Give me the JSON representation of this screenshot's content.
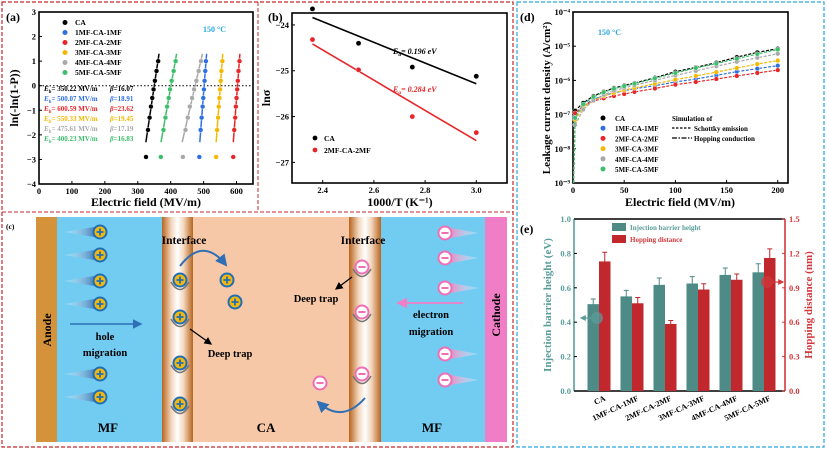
{
  "chart_data": [
    {
      "type": "scatter",
      "panel_label": "(a)",
      "xlabel": "Electric field (MV/m)",
      "ylabel": "ln(-ln(1-P))",
      "xlim": [
        0,
        650
      ],
      "ylim": [
        -4,
        3
      ],
      "xticks": [
        0,
        100,
        200,
        300,
        400,
        500,
        600
      ],
      "xtick_labels": [
        "0",
        "100",
        "200",
        "300",
        "400",
        "500",
        "600"
      ],
      "yticks": [
        -4,
        -3,
        -2,
        -1,
        0,
        1,
        2,
        3
      ],
      "ytick_labels": [
        "−4",
        "−3",
        "−2",
        "−1",
        "0",
        "1",
        "2",
        "3"
      ],
      "annotation": "150 °C",
      "annotation_color": "#2AA7E0",
      "reference_line_y": 0,
      "eb_symbol": "E",
      "eb_subscript": "b",
      "beta_symbol": "β",
      "y_values": [
        -2.9,
        -1.8,
        -1.3,
        -0.85,
        -0.5,
        -0.15,
        0.2,
        0.6,
        1.0
      ],
      "series": [
        {
          "name": "CA",
          "color": "#000000",
          "x": [
            325,
            331,
            336,
            340,
            344,
            348,
            352,
            357,
            362
          ],
          "eb_text": "= 350.22 MV/m",
          "beta_text": "=16.07"
        },
        {
          "name": "1MF-CA-1MF",
          "color": "#2F6FE0",
          "x": [
            487,
            491,
            494,
            497,
            499,
            501,
            503,
            505,
            507
          ],
          "eb_text": "= 500.07 MV/m",
          "beta_text": "=18.91"
        },
        {
          "name": "2MF-CA-2MF",
          "color": "#E8262A",
          "x": [
            590,
            593,
            596,
            598,
            600,
            602,
            604,
            606,
            609
          ],
          "eb_text": "= 600.59 MV/m",
          "beta_text": "=23.62"
        },
        {
          "name": "3MF-CA-3MF",
          "color": "#F5B800",
          "x": [
            538,
            541,
            544,
            546,
            548,
            550,
            552,
            554,
            557
          ],
          "eb_text": "= 550.33 MV/m",
          "beta_text": "=19.45"
        },
        {
          "name": "4MF-CA-4MF",
          "color": "#A8A8A8",
          "x": [
            437,
            445,
            452,
            458,
            465,
            471,
            478,
            485,
            492
          ],
          "eb_text": "= 475.61 MV/m",
          "beta_text": "=17.19"
        },
        {
          "name": "5MF-CA-5MF",
          "color": "#3DBE6A",
          "x": [
            370,
            378,
            384,
            389,
            394,
            398,
            403,
            409,
            415
          ],
          "eb_text": "= 400.23 MV/m",
          "beta_text": "=16.83"
        }
      ]
    },
    {
      "type": "scatter",
      "panel_label": "(b)",
      "xlabel": "1000/T (K⁻¹)",
      "ylabel": "lnσ",
      "xlim": [
        2.28,
        3.12
      ],
      "ylim": [
        -27.45,
        -23.74
      ],
      "xticks": [
        2.4,
        2.6,
        2.8,
        3.0
      ],
      "xtick_labels": [
        "2.4",
        "2.6",
        "2.8",
        "3.0"
      ],
      "yticks": [
        -24,
        -25,
        -26,
        -27
      ],
      "ytick_labels": [
        "−24",
        "−25",
        "−26",
        "−27"
      ],
      "series": [
        {
          "name": "CA",
          "color": "#000000",
          "x": [
            2.36,
            2.54,
            2.75,
            3.0
          ],
          "y": [
            -23.65,
            -24.4,
            -24.92,
            -25.12
          ],
          "ea_symbol": "E",
          "ea_subscript": "a",
          "ea_text": "= 0.196 eV"
        },
        {
          "name": "2MF-CA-2MF",
          "color": "#E8262A",
          "x": [
            2.36,
            2.54,
            2.75,
            3.0
          ],
          "y": [
            -24.32,
            -24.98,
            -26.0,
            -26.35
          ],
          "ea_symbol": "E",
          "ea_subscript": "a",
          "ea_text": "= 0.284 eV"
        }
      ]
    },
    {
      "type": "line",
      "panel_label": "(d)",
      "xlabel": "Electric field (MV/m)",
      "ylabel": "Leakage current density (A/cm²)",
      "y_scale": "log",
      "xlim": [
        0,
        210
      ],
      "ylim": [
        1e-09,
        0.0001
      ],
      "xticks": [
        0,
        50,
        100,
        150,
        200
      ],
      "xtick_labels": [
        "0",
        "50",
        "100",
        "150",
        "200"
      ],
      "yticks": [
        1e-09,
        1e-08,
        1e-07,
        1e-06,
        1e-05,
        0.0001
      ],
      "ytick_labels": [
        "10⁻⁹",
        "10⁻⁸",
        "10⁻⁷",
        "10⁻⁶",
        "10⁻⁵",
        "10⁻⁴"
      ],
      "annotation": "150 °C",
      "annotation_color": "#2AA7E0",
      "simulation_title": "Simulation of",
      "simulation_legend": [
        "Schottky emission",
        "Hopping conduction"
      ],
      "x": [
        2,
        10,
        20,
        30,
        40,
        50,
        60,
        80,
        100,
        120,
        140,
        160,
        180,
        200
      ],
      "series": [
        {
          "name": "CA",
          "color": "#000000",
          "y": [
            1.3e-07,
            2.2e-07,
            3.5e-07,
            4.7e-07,
            6e-07,
            7.1e-07,
            8.3e-07,
            1.2e-06,
            1.8e-06,
            2.4e-06,
            3.3e-06,
            4.8e-06,
            6.6e-06,
            8.5e-06
          ]
        },
        {
          "name": "1MF-CA-1MF",
          "color": "#2F6FE0",
          "y": [
            9e-08,
            1.8e-07,
            2.8e-07,
            3.6e-07,
            4.3e-07,
            5e-07,
            5.7e-07,
            7e-07,
            9e-07,
            1.1e-06,
            1.4e-06,
            1.8e-06,
            2.2e-06,
            2.7e-06
          ]
        },
        {
          "name": "2MF-CA-2MF",
          "color": "#E8262A",
          "y": [
            1.1e-07,
            1.8e-07,
            2.5e-07,
            3e-07,
            3.5e-07,
            4e-07,
            4.6e-07,
            5.8e-07,
            7.5e-07,
            9e-07,
            1.1e-06,
            1.35e-06,
            1.65e-06,
            2e-06
          ]
        },
        {
          "name": "3MF-CA-3MF",
          "color": "#F5B800",
          "y": [
            7e-08,
            1.6e-07,
            2.6e-07,
            3.5e-07,
            4.3e-07,
            5.2e-07,
            6e-07,
            8e-07,
            1.05e-06,
            1.35e-06,
            1.75e-06,
            2.3e-06,
            3e-06,
            3.8e-06
          ]
        },
        {
          "name": "4MF-CA-4MF",
          "color": "#A8A8A8",
          "y": [
            5e-08,
            1.4e-07,
            2.6e-07,
            3.8e-07,
            5e-07,
            6e-07,
            7.2e-07,
            1e-06,
            1.4e-06,
            1.9e-06,
            2.6e-06,
            3.5e-06,
            4.6e-06,
            6e-06
          ]
        },
        {
          "name": "5MF-CA-5MF",
          "color": "#3DBE6A",
          "y": [
            8e-08,
            2e-07,
            3.3e-07,
            4.5e-07,
            5.7e-07,
            6.8e-07,
            8e-07,
            1.15e-06,
            1.65e-06,
            2.3e-06,
            3.1e-06,
            4.3e-06,
            5.9e-06,
            8e-06
          ]
        }
      ]
    },
    {
      "type": "bar",
      "panel_label": "(e)",
      "categories": [
        "CA",
        "1MF-CA-1MF",
        "2MF-CA-2MF",
        "3MF-CA-3MF",
        "4MF-CA-4MF",
        "5MF-CA-5MF"
      ],
      "ylabel": "Injection barrier height (eV)",
      "ylabel_right": "Hopping distance (nm)",
      "ylim": [
        0,
        1.0
      ],
      "ylim_right": [
        0,
        1.5
      ],
      "yticks": [
        0,
        0.2,
        0.4,
        0.6,
        0.8,
        1.0
      ],
      "ytick_labels": [
        "0.0",
        "0.2",
        "0.4",
        "0.6",
        "0.8",
        "1.0"
      ],
      "yticks_right": [
        0,
        0.3,
        0.6,
        0.9,
        1.2,
        1.5
      ],
      "ytick_labels_right": [
        "0.0",
        "0.3",
        "0.6",
        "0.9",
        "1.2",
        "1.5"
      ],
      "left_color": "#5A9E9A",
      "right_color": "#D2373C",
      "series": [
        {
          "name": "Injection barrier height",
          "axis": "left",
          "color": "#4E8A86",
          "values": [
            0.505,
            0.55,
            0.617,
            0.625,
            0.675,
            0.69
          ],
          "errors": [
            0.03,
            0.035,
            0.04,
            0.04,
            0.04,
            0.05
          ]
        },
        {
          "name": "Hopping distance",
          "axis": "right",
          "color": "#C0282D",
          "values": [
            1.13,
            0.765,
            0.585,
            0.885,
            0.97,
            1.16
          ],
          "errors": [
            0.08,
            0.05,
            0.03,
            0.05,
            0.05,
            0.08
          ]
        }
      ]
    }
  ],
  "diagram": {
    "panel_label": "(c)",
    "anode": "Anode",
    "cathode": "Cathode",
    "interface_left": "Interface",
    "interface_right": "Interface",
    "deep_trap_left": "Deep trap",
    "deep_trap_right": "Deep trap",
    "hole_migration": [
      "hole",
      "migration"
    ],
    "electron_migration": [
      "electron",
      "migration"
    ],
    "layer_left": "MF",
    "layer_center": "CA",
    "layer_right": "MF",
    "colors": {
      "anode": "#D4923A",
      "mf": "#72CCF2",
      "ca": "#F7C8A8",
      "cathode": "#F07EC6",
      "hole": "#F5B80A",
      "hole_ring": "#1E6FB5",
      "electron_ring": "#F06EB4"
    }
  }
}
